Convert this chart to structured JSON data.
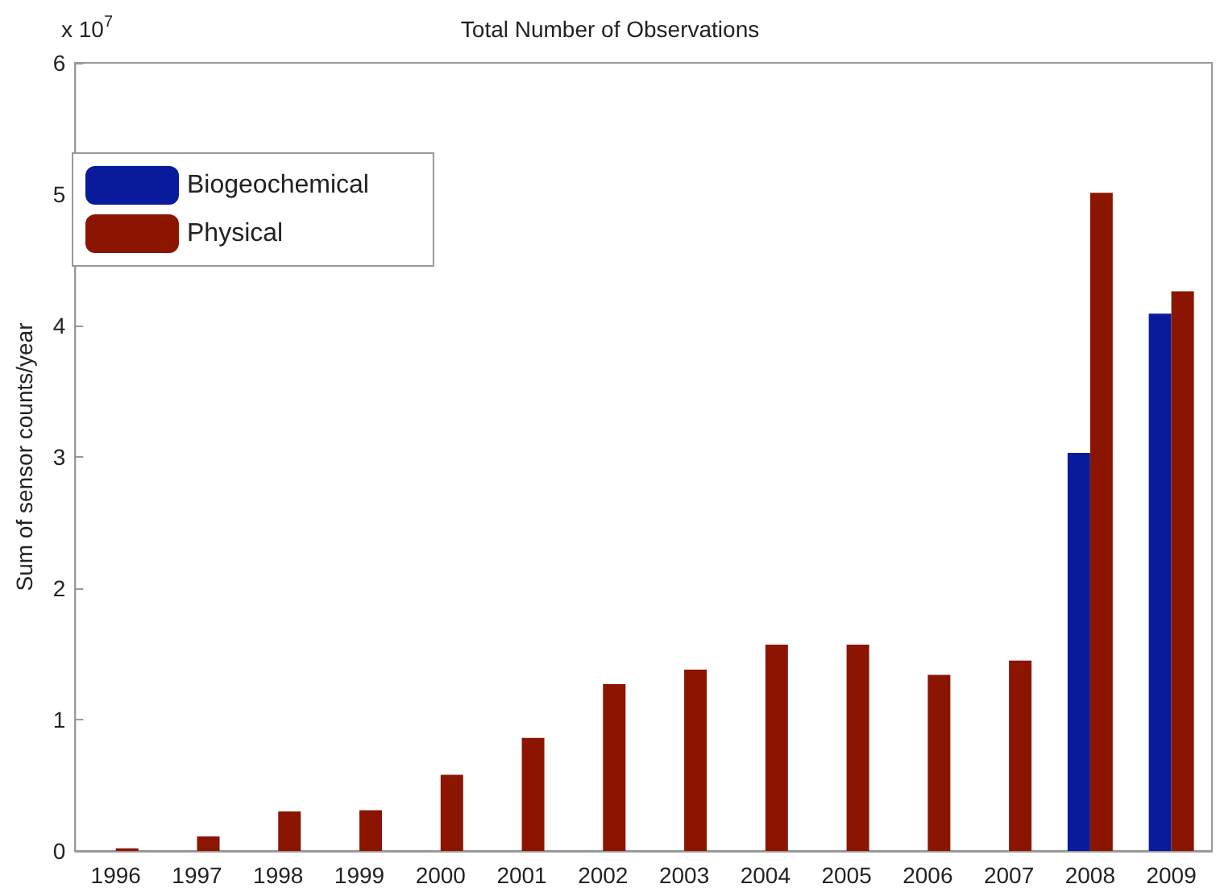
{
  "chart_data": {
    "type": "bar",
    "title": "Total Number of Observations",
    "ylabel": "Sum of sensor counts/year",
    "annotations": [
      "x 10$^{7}$"
    ],
    "categories": [
      "1996",
      "1997",
      "1998",
      "1999",
      "2000",
      "2001",
      "2002",
      "2003",
      "2004",
      "2005",
      "2006",
      "2007",
      "2008",
      "2009"
    ],
    "series": [
      {
        "name": "Biogeochemical",
        "color": "#0a1a9c",
        "values": [
          null,
          null,
          null,
          null,
          null,
          null,
          null,
          null,
          null,
          null,
          null,
          null,
          3.03,
          4.09
        ]
      },
      {
        "name": "Physical",
        "color": "#8b1500",
        "values": [
          0.02,
          0.11,
          0.3,
          0.31,
          0.58,
          0.86,
          1.27,
          1.38,
          1.57,
          1.57,
          1.34,
          1.45,
          5.01,
          4.26
        ]
      }
    ],
    "ylim": [
      0,
      6
    ],
    "yticks": [
      0,
      1,
      2,
      3,
      4,
      5,
      6
    ],
    "grid": false,
    "legend": "top left"
  }
}
